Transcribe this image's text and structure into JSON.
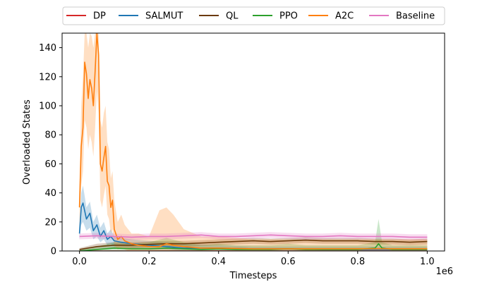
{
  "chart_data": {
    "type": "line",
    "title": "",
    "xlabel": "Timesteps",
    "ylabel": "Overloaded States",
    "x_offset_label": "1e6",
    "xlim": [
      -0.05,
      1.05
    ],
    "ylim": [
      0,
      150
    ],
    "x_ticks": [
      0.0,
      0.2,
      0.4,
      0.6,
      0.8,
      1.0
    ],
    "x_tick_labels": [
      "0.0",
      "0.2",
      "0.4",
      "0.6",
      "0.8",
      "1.0"
    ],
    "y_ticks": [
      0,
      20,
      40,
      60,
      80,
      100,
      120,
      140
    ],
    "y_tick_labels": [
      "0",
      "20",
      "40",
      "60",
      "80",
      "100",
      "120",
      "140"
    ],
    "grid": false,
    "legend_position": "top, outside plot, single row",
    "series": [
      {
        "name": "DP",
        "color": "#d62728",
        "x": [
          0.0,
          0.1,
          0.2,
          0.3,
          0.4,
          0.5,
          0.6,
          0.7,
          0.8,
          0.9,
          1.0
        ],
        "y": [
          0,
          0,
          0,
          0,
          0,
          0,
          0,
          0,
          0,
          0,
          0
        ]
      },
      {
        "name": "SALMUT",
        "color": "#1f77b4",
        "x": [
          0.0,
          0.005,
          0.01,
          0.02,
          0.03,
          0.04,
          0.05,
          0.06,
          0.07,
          0.08,
          0.09,
          0.1,
          0.12,
          0.15,
          0.2,
          0.25,
          0.3,
          0.4,
          0.5,
          0.6,
          0.7,
          0.8,
          0.9,
          1.0
        ],
        "y": [
          12,
          30,
          33,
          22,
          26,
          14,
          18,
          10,
          14,
          8,
          10,
          7,
          6,
          5,
          4,
          3,
          2,
          2,
          1.5,
          1.5,
          1,
          1,
          1,
          1
        ],
        "band_low": [
          8,
          18,
          20,
          14,
          16,
          8,
          10,
          6,
          8,
          4,
          5,
          3,
          3,
          2,
          1,
          1,
          0,
          0,
          0,
          0,
          0,
          0,
          0,
          0
        ],
        "band_high": [
          16,
          40,
          45,
          30,
          34,
          20,
          25,
          16,
          20,
          12,
          15,
          10,
          9,
          8,
          7,
          6,
          5,
          4,
          3,
          3,
          3,
          3,
          3,
          3
        ]
      },
      {
        "name": "QL",
        "color": "#6b3a0a",
        "x": [
          0.0,
          0.05,
          0.1,
          0.15,
          0.2,
          0.25,
          0.3,
          0.35,
          0.4,
          0.45,
          0.5,
          0.55,
          0.6,
          0.65,
          0.7,
          0.75,
          0.8,
          0.85,
          0.9,
          0.95,
          1.0
        ],
        "y": [
          1,
          3,
          4,
          4,
          4.5,
          5,
          5,
          5.5,
          6,
          6.5,
          7,
          6.5,
          7,
          7.5,
          7,
          7,
          7,
          6.5,
          6.5,
          6,
          6.5
        ],
        "band_low": [
          0,
          1,
          2,
          2,
          2.5,
          3,
          3,
          3.5,
          4,
          4.5,
          5,
          4.5,
          5,
          5.5,
          5,
          5,
          5,
          4.5,
          4.5,
          4,
          4.5
        ],
        "band_high": [
          2,
          5,
          6,
          6,
          6.5,
          7,
          7,
          7.5,
          8,
          8.5,
          9,
          8.5,
          9,
          9.5,
          9,
          9,
          9,
          8.5,
          8.5,
          8,
          8.5
        ]
      },
      {
        "name": "PPO",
        "color": "#2ca02c",
        "x": [
          0.0,
          0.05,
          0.1,
          0.15,
          0.2,
          0.25,
          0.3,
          0.35,
          0.4,
          0.45,
          0.5,
          0.55,
          0.6,
          0.65,
          0.7,
          0.75,
          0.8,
          0.85,
          0.86,
          0.87,
          0.9,
          0.95,
          1.0
        ],
        "y": [
          0,
          1,
          2,
          1.5,
          1.5,
          2,
          1.5,
          1,
          1.5,
          1,
          1,
          1,
          1.5,
          1,
          1,
          1,
          1,
          2,
          5,
          2,
          1,
          1,
          1
        ],
        "band_low": [
          0,
          0,
          0,
          0,
          0,
          0,
          0,
          0,
          0,
          0,
          0,
          0,
          0,
          0,
          0,
          0,
          0,
          0,
          0,
          0,
          0,
          0,
          0
        ],
        "band_high": [
          1,
          3,
          6,
          5,
          6,
          9,
          6,
          4,
          5,
          4,
          4,
          4,
          5,
          4,
          4,
          4,
          4,
          6,
          22,
          6,
          4,
          4,
          4
        ]
      },
      {
        "name": "A2C",
        "color": "#ff7f0e",
        "x": [
          0.0,
          0.005,
          0.01,
          0.015,
          0.02,
          0.025,
          0.03,
          0.035,
          0.04,
          0.045,
          0.05,
          0.055,
          0.06,
          0.065,
          0.07,
          0.075,
          0.08,
          0.085,
          0.09,
          0.095,
          0.1,
          0.11,
          0.12,
          0.13,
          0.14,
          0.15,
          0.17,
          0.2,
          0.23,
          0.25,
          0.27,
          0.3,
          0.35,
          0.4,
          0.5,
          0.6,
          0.7,
          0.8,
          0.9,
          1.0
        ],
        "y": [
          30,
          72,
          85,
          130,
          122,
          105,
          118,
          112,
          100,
          124,
          150,
          135,
          60,
          55,
          64,
          72,
          48,
          45,
          30,
          35,
          15,
          8,
          10,
          7,
          6,
          5,
          4,
          3,
          3,
          5,
          4,
          3,
          2,
          2,
          1.5,
          1.5,
          1.5,
          1.5,
          1.5,
          1.5
        ],
        "band_low": [
          15,
          45,
          55,
          90,
          85,
          70,
          80,
          75,
          65,
          85,
          110,
          95,
          35,
          30,
          38,
          45,
          25,
          22,
          12,
          15,
          4,
          1,
          2,
          1,
          0,
          0,
          0,
          0,
          0,
          0,
          0,
          0,
          0,
          0,
          0,
          0,
          0,
          0,
          0,
          0
        ],
        "band_high": [
          45,
          100,
          120,
          150,
          150,
          140,
          150,
          148,
          140,
          150,
          150,
          150,
          90,
          85,
          95,
          100,
          75,
          70,
          50,
          55,
          35,
          20,
          25,
          18,
          15,
          12,
          12,
          10,
          28,
          30,
          25,
          15,
          10,
          10,
          8,
          8,
          8,
          8,
          8,
          8
        ]
      },
      {
        "name": "Baseline",
        "color": "#e377c2",
        "x": [
          0.0,
          0.05,
          0.1,
          0.15,
          0.2,
          0.25,
          0.3,
          0.35,
          0.4,
          0.45,
          0.5,
          0.55,
          0.6,
          0.65,
          0.7,
          0.75,
          0.8,
          0.85,
          0.9,
          0.95,
          1.0
        ],
        "y": [
          10,
          10.5,
          10,
          9.5,
          10,
          10,
          10.5,
          11,
          10,
          10,
          10.5,
          11,
          10.5,
          10,
          10,
          10.5,
          10,
          10,
          10,
          9.5,
          9.5
        ],
        "band_low": [
          8,
          8.5,
          8,
          7.5,
          8,
          8,
          8.5,
          9,
          8,
          8,
          8.5,
          9,
          8.5,
          8,
          8,
          8.5,
          8,
          8,
          8,
          7.5,
          7.5
        ],
        "band_high": [
          12,
          12.5,
          12,
          11.5,
          12,
          12,
          12.5,
          13,
          12,
          12,
          12.5,
          13,
          12.5,
          12,
          12,
          12.5,
          12,
          12,
          12,
          11.5,
          11.5
        ]
      }
    ]
  }
}
